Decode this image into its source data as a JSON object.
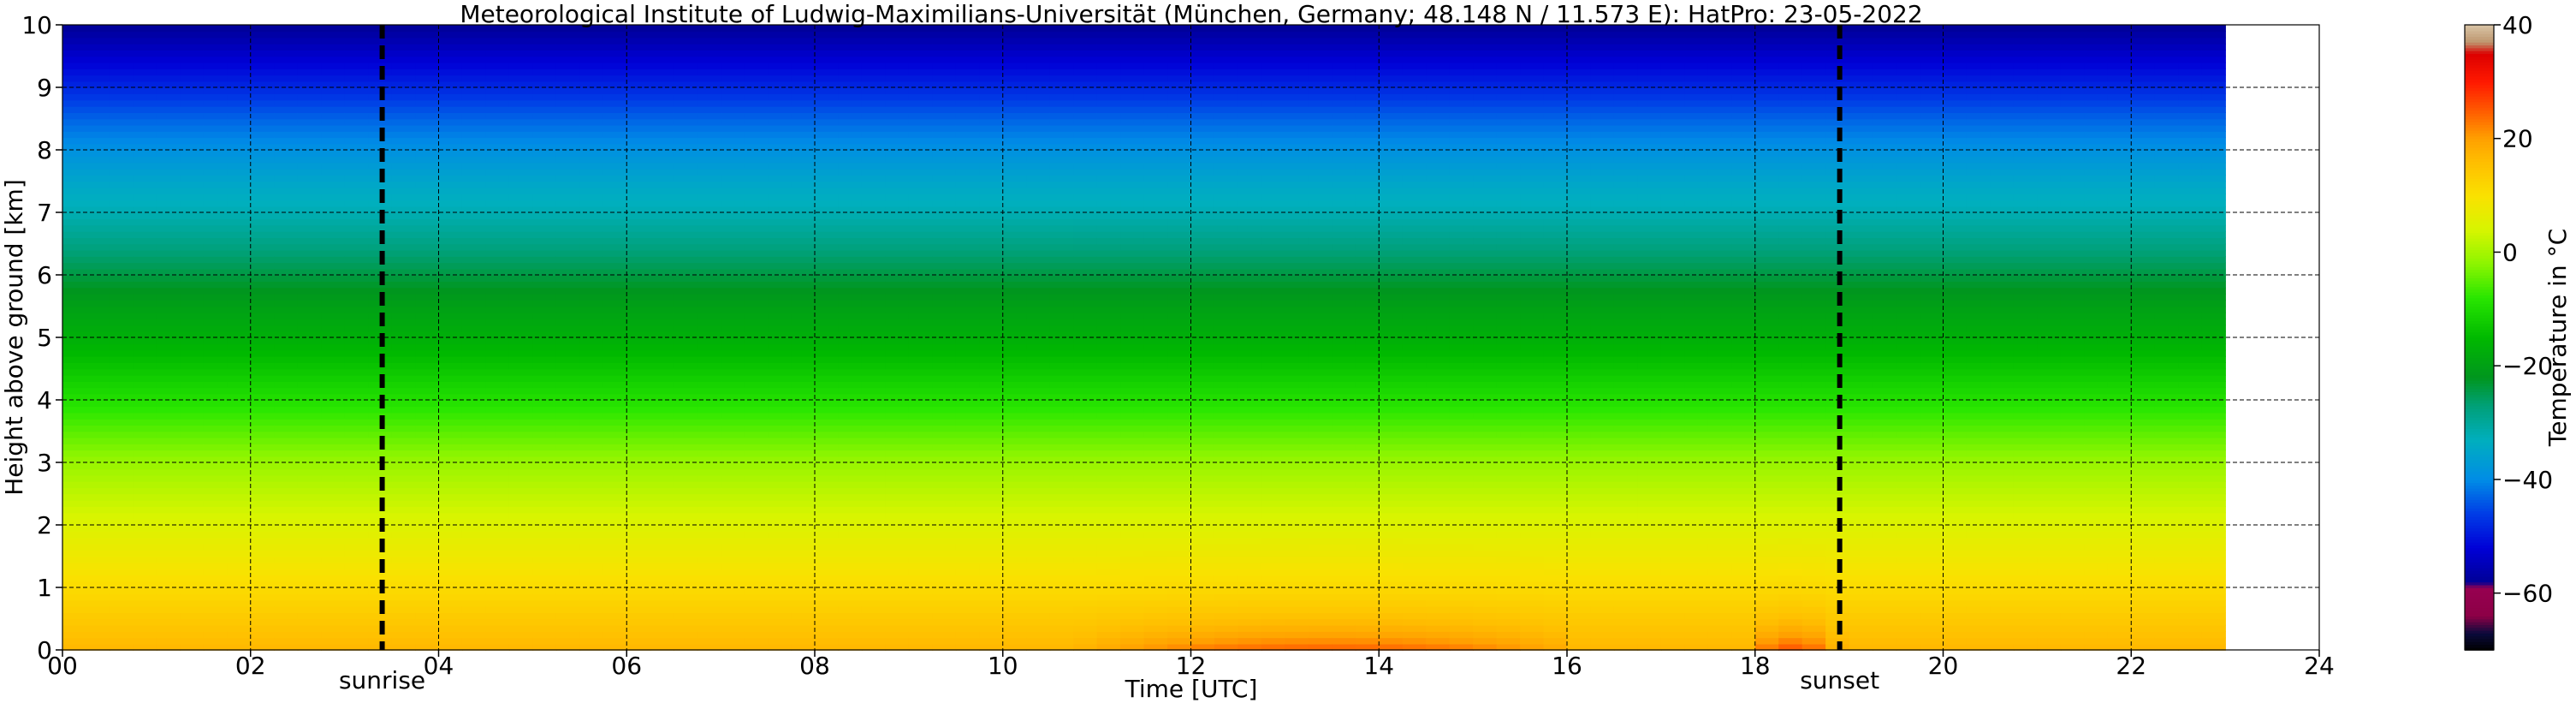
{
  "chart_data": {
    "type": "heatmap",
    "title": "Meteorological Institute of Ludwig-Maximilians-Universität (München, Germany; 48.148 N / 11.573 E):    HatPro: 23-05-2022",
    "xlabel": "Time [UTC]",
    "ylabel": "Height above ground [km]",
    "colorbar_label": "Temperature in $^\\circ$C",
    "xlim": [
      0,
      24
    ],
    "ylim": [
      0,
      10
    ],
    "x_ticks": [
      0,
      2,
      4,
      6,
      8,
      10,
      12,
      14,
      16,
      18,
      20,
      22,
      24
    ],
    "x_tick_labels": [
      "00",
      "02",
      "04",
      "06",
      "08",
      "10",
      "12",
      "14",
      "16",
      "18",
      "20",
      "22",
      "24"
    ],
    "y_ticks": [
      0,
      1,
      2,
      3,
      4,
      5,
      6,
      7,
      8,
      9,
      10
    ],
    "y_tick_labels": [
      "0",
      "1",
      "2",
      "3",
      "4",
      "5",
      "6",
      "7",
      "8",
      "9",
      "10"
    ],
    "data_time_range": [
      0,
      23
    ],
    "grid": true,
    "colorbar": {
      "range": [
        -70,
        40
      ],
      "ticks": [
        -60,
        -40,
        -20,
        0,
        20,
        40
      ],
      "tick_labels": [
        "−60",
        "−40",
        "−20",
        "0",
        "20",
        "40"
      ]
    },
    "temperature_profile": {
      "heights_km": [
        0,
        0.5,
        1,
        1.5,
        2,
        2.5,
        3,
        3.5,
        4,
        4.5,
        5,
        5.5,
        6,
        6.5,
        7,
        7.5,
        8,
        8.5,
        9,
        9.5,
        10
      ],
      "base_values_c": [
        17,
        14,
        11,
        8,
        5,
        2,
        -1,
        -5,
        -9,
        -13,
        -17,
        -20,
        -24,
        -28,
        -32,
        -35,
        -39,
        -43,
        -48,
        -53,
        -58
      ]
    },
    "surface_warming": [
      {
        "time_start": 10.5,
        "time_end": 16.0,
        "peak_time": 13.5,
        "peak_c": 25
      },
      {
        "time_start": 18.0,
        "time_end": 19.0,
        "peak_time": 18.4,
        "peak_c": 26
      }
    ],
    "markers": [
      {
        "label": "sunrise",
        "time": 3.4
      },
      {
        "label": "sunset",
        "time": 18.9
      }
    ]
  }
}
